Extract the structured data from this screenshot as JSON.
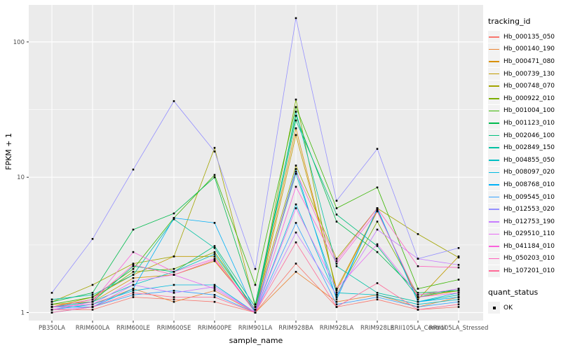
{
  "figure": {
    "background": "#FFFFFF",
    "panel_bg": "#EBEBEB",
    "grid_color": "#FFFFFF",
    "tick_color": "#333333",
    "tick_label_color": "#4D4D4D",
    "point_color": "#000000"
  },
  "chart_data": {
    "type": "line",
    "title": "",
    "xlabel": "sample_name",
    "ylabel": "FPKM + 1",
    "y_scale": "log10",
    "y_ticks": [
      1,
      10,
      100
    ],
    "y_tick_labels": [
      "1",
      "10",
      "100"
    ],
    "y_minor_ticks": [
      3.162,
      31.62
    ],
    "ylim": [
      0.87,
      190
    ],
    "grid": true,
    "legend_position": "right",
    "categories": [
      "PB350LA",
      "RRIM600LA",
      "RRIM600LE",
      "RRIM600SE",
      "RRIM600PE",
      "RRIM901LA",
      "RRIM928BA",
      "RRIM928LA",
      "RRIM928LE",
      "RRII105LA_Control",
      "RRII105LA_Stressed"
    ],
    "legend": {
      "color_title": "tracking_id",
      "shape_title": "quant_status",
      "shape_items": [
        {
          "label": "OK",
          "marker": "black-square"
        }
      ]
    },
    "series": [
      {
        "name": "Hb_000135_050",
        "color": "#F8766D",
        "values": [
          1.05,
          1.05,
          1.3,
          1.25,
          1.2,
          1.0,
          2.3,
          1.1,
          1.25,
          1.05,
          1.1
        ]
      },
      {
        "name": "Hb_000140_190",
        "color": "#EA8331",
        "values": [
          1.1,
          1.15,
          1.5,
          1.2,
          1.45,
          1.0,
          2.0,
          1.2,
          1.35,
          1.1,
          1.3
        ]
      },
      {
        "name": "Hb_000471_080",
        "color": "#D89000",
        "values": [
          1.15,
          1.2,
          1.8,
          1.9,
          2.4,
          1.05,
          23.0,
          1.45,
          5.6,
          1.3,
          1.45
        ]
      },
      {
        "name": "Hb_000739_130",
        "color": "#C09B00",
        "values": [
          1.1,
          1.3,
          1.9,
          2.6,
          2.6,
          1.0,
          20.5,
          1.5,
          5.7,
          1.25,
          2.6
        ]
      },
      {
        "name": "Hb_000748_070",
        "color": "#A3A500",
        "values": [
          1.2,
          1.6,
          2.3,
          2.6,
          16.5,
          1.1,
          12.2,
          2.5,
          5.9,
          3.8,
          2.55
        ]
      },
      {
        "name": "Hb_000922_010",
        "color": "#7CAE00",
        "values": [
          1.1,
          1.25,
          2.0,
          2.1,
          2.8,
          1.05,
          37.5,
          1.35,
          4.7,
          1.35,
          1.45
        ]
      },
      {
        "name": "Hb_001004_100",
        "color": "#39B600",
        "values": [
          1.15,
          1.3,
          2.1,
          5.0,
          10.4,
          1.6,
          33.0,
          5.9,
          8.4,
          1.5,
          1.75
        ]
      },
      {
        "name": "Hb_001123_010",
        "color": "#00BB4E",
        "values": [
          1.2,
          1.4,
          4.1,
          5.4,
          10.0,
          1.15,
          28.5,
          4.7,
          2.8,
          1.4,
          1.45
        ]
      },
      {
        "name": "Hb_002046_100",
        "color": "#00BF7D",
        "values": [
          1.1,
          1.2,
          2.2,
          2.0,
          3.1,
          1.1,
          26.3,
          5.3,
          3.1,
          1.3,
          1.5
        ]
      },
      {
        "name": "Hb_002849_150",
        "color": "#00C1A3",
        "values": [
          1.25,
          1.35,
          1.9,
          4.9,
          3.0,
          1.0,
          30.5,
          2.2,
          1.4,
          1.2,
          1.35
        ]
      },
      {
        "name": "Hb_004855_050",
        "color": "#00BFC4",
        "values": [
          1.1,
          1.2,
          1.6,
          2.0,
          2.7,
          1.05,
          10.6,
          1.4,
          1.35,
          1.15,
          1.25
        ]
      },
      {
        "name": "Hb_008097_020",
        "color": "#00BAE0",
        "values": [
          1.05,
          1.15,
          1.45,
          1.6,
          1.6,
          1.0,
          6.3,
          1.3,
          5.8,
          1.2,
          1.4
        ]
      },
      {
        "name": "Hb_008768_010",
        "color": "#00B0F6",
        "values": [
          1.1,
          1.1,
          1.5,
          5.0,
          4.6,
          1.0,
          11.5,
          1.25,
          5.9,
          1.2,
          1.3
        ]
      },
      {
        "name": "Hb_009545_010",
        "color": "#35A2FF",
        "values": [
          1.0,
          1.1,
          1.35,
          1.45,
          1.35,
          1.0,
          4.6,
          1.15,
          1.3,
          1.1,
          1.2
        ]
      },
      {
        "name": "Hb_012553_020",
        "color": "#9590FF",
        "values": [
          1.4,
          3.5,
          11.4,
          36.5,
          15.5,
          2.1,
          150.0,
          6.7,
          16.2,
          2.5,
          3.0
        ]
      },
      {
        "name": "Hb_012753_190",
        "color": "#C77CFF",
        "values": [
          1.05,
          1.1,
          1.6,
          1.4,
          1.55,
          1.0,
          3.9,
          1.35,
          4.1,
          2.5,
          2.25
        ]
      },
      {
        "name": "Hb_029510_110",
        "color": "#E76BF3",
        "values": [
          1.1,
          1.15,
          1.7,
          1.9,
          1.5,
          1.0,
          5.9,
          1.5,
          3.2,
          1.35,
          1.5
        ]
      },
      {
        "name": "Hb_041184_010",
        "color": "#FA62DB",
        "values": [
          1.05,
          1.2,
          2.8,
          2.0,
          2.5,
          1.0,
          8.5,
          2.3,
          5.6,
          1.3,
          1.4
        ]
      },
      {
        "name": "Hb_050203_010",
        "color": "#FF62BC",
        "values": [
          1.1,
          1.25,
          2.25,
          1.9,
          2.45,
          1.05,
          11.0,
          2.4,
          5.9,
          2.2,
          2.15
        ]
      },
      {
        "name": "Hb_107201_010",
        "color": "#FF6A98",
        "values": [
          1.0,
          1.1,
          1.4,
          1.3,
          1.3,
          1.0,
          3.3,
          1.1,
          1.65,
          1.05,
          1.15
        ]
      }
    ]
  }
}
